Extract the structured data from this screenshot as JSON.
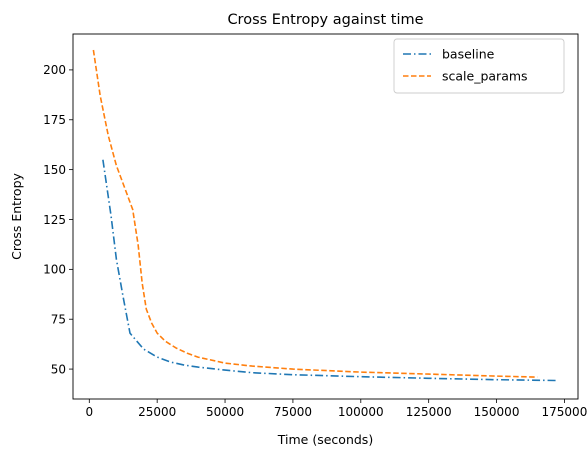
{
  "chart_data": {
    "type": "line",
    "title": "Cross Entropy against time",
    "xlabel": "Time (seconds)",
    "ylabel": "Cross Entropy",
    "xlim": [
      -6000,
      180000
    ],
    "ylim": [
      35,
      218
    ],
    "xticks": [
      0,
      25000,
      50000,
      75000,
      100000,
      125000,
      150000,
      175000
    ],
    "yticks": [
      50,
      75,
      100,
      125,
      150,
      175,
      200
    ],
    "grid": false,
    "legend_position": "top-right",
    "series": [
      {
        "name": "baseline",
        "color": "#1f77b4",
        "linestyle": "dashdot",
        "x": [
          5000,
          8000,
          10000,
          12500,
          15000,
          20000,
          25000,
          30000,
          35000,
          40000,
          50000,
          60000,
          75000,
          100000,
          125000,
          150000,
          172000
        ],
        "y": [
          155,
          127,
          105,
          86,
          68,
          60,
          56,
          53.5,
          52,
          51,
          49.5,
          48.2,
          47.2,
          46.2,
          45.4,
          44.7,
          44.3
        ]
      },
      {
        "name": "scale_params",
        "color": "#ff7f0e",
        "linestyle": "dashed",
        "x": [
          1500,
          4000,
          7000,
          10000,
          13000,
          16000,
          18000,
          19500,
          21000,
          23000,
          25000,
          28000,
          32000,
          36000,
          40000,
          50000,
          60000,
          75000,
          100000,
          125000,
          150000,
          165000
        ],
        "y": [
          210,
          187,
          167,
          152,
          141,
          130,
          112,
          93,
          80,
          73,
          68,
          64,
          60.5,
          58,
          56,
          53,
          51.5,
          50,
          48.5,
          47.5,
          46.5,
          46
        ]
      }
    ]
  }
}
